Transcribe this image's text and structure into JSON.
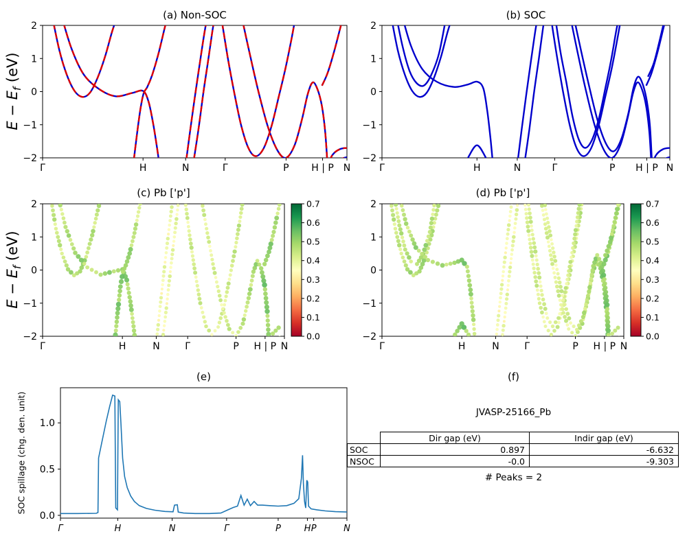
{
  "figure": {
    "background": "#ffffff"
  },
  "kpath": {
    "labels": [
      "Γ",
      "H",
      "N",
      "Γ",
      "P",
      "H | P",
      "N"
    ],
    "fractions": [
      0,
      0.33,
      0.47,
      0.6,
      0.8,
      0.92,
      1.0
    ]
  },
  "energy_ylabel": {
    "pre": "E − E",
    "sub": "f",
    "post": " (eV)"
  },
  "colormap": [
    "#a50026",
    "#d73027",
    "#f46d43",
    "#fdae61",
    "#fee08b",
    "#ffffbf",
    "#d9ef8b",
    "#a6d96a",
    "#66bd63",
    "#1a9850",
    "#006837"
  ],
  "bands": {
    "nonsoc": [
      [
        [
          0.03,
          2.35
        ],
        [
          0.055,
          1.25
        ],
        [
          0.08,
          0.5
        ],
        [
          0.105,
          0.02
        ],
        [
          0.13,
          -0.16
        ],
        [
          0.155,
          -0.04
        ],
        [
          0.18,
          0.4
        ],
        [
          0.205,
          1.05
        ],
        [
          0.228,
          1.8
        ],
        [
          0.248,
          2.35
        ]
      ],
      [
        [
          0.06,
          2.35
        ],
        [
          0.095,
          1.3
        ],
        [
          0.135,
          0.52
        ],
        [
          0.185,
          0.08
        ],
        [
          0.24,
          -0.14
        ],
        [
          0.295,
          -0.04
        ],
        [
          0.33,
          0.02
        ],
        [
          0.348,
          -0.3
        ],
        [
          0.363,
          -0.95
        ],
        [
          0.376,
          -1.7
        ],
        [
          0.386,
          -2.35
        ]
      ],
      [
        [
          0.296,
          -2.35
        ],
        [
          0.31,
          -1.3
        ],
        [
          0.322,
          -0.5
        ],
        [
          0.332,
          -0.05
        ],
        [
          0.344,
          0.14
        ],
        [
          0.36,
          0.5
        ],
        [
          0.38,
          1.12
        ],
        [
          0.4,
          1.88
        ],
        [
          0.413,
          2.35
        ]
      ],
      [
        [
          0.468,
          -2.35
        ],
        [
          0.486,
          -1.1
        ],
        [
          0.502,
          -0.05
        ],
        [
          0.518,
          0.95
        ],
        [
          0.534,
          1.9
        ],
        [
          0.544,
          2.35
        ]
      ],
      [
        [
          0.492,
          -2.35
        ],
        [
          0.512,
          -1.15
        ],
        [
          0.528,
          -0.05
        ],
        [
          0.545,
          1.0
        ],
        [
          0.56,
          1.95
        ],
        [
          0.569,
          2.35
        ]
      ],
      [
        [
          0.585,
          2.35
        ],
        [
          0.608,
          1.05
        ],
        [
          0.628,
          0.05
        ],
        [
          0.652,
          -1.0
        ],
        [
          0.676,
          -1.7
        ],
        [
          0.7,
          -1.95
        ],
        [
          0.726,
          -1.72
        ],
        [
          0.752,
          -1.05
        ],
        [
          0.776,
          -0.15
        ],
        [
          0.798,
          0.7
        ],
        [
          0.818,
          1.6
        ],
        [
          0.833,
          2.35
        ]
      ],
      [
        [
          0.652,
          2.35
        ],
        [
          0.678,
          1.25
        ],
        [
          0.708,
          0.05
        ],
        [
          0.74,
          -1.05
        ],
        [
          0.772,
          -1.78
        ],
        [
          0.8,
          -2.0
        ],
        [
          0.828,
          -1.62
        ],
        [
          0.852,
          -0.85
        ],
        [
          0.872,
          -0.05
        ],
        [
          0.888,
          0.28
        ],
        [
          0.904,
          0.05
        ],
        [
          0.918,
          -0.45
        ],
        [
          0.929,
          -1.25
        ],
        [
          0.937,
          -2.35
        ]
      ],
      [
        [
          0.918,
          0.18
        ],
        [
          0.936,
          0.55
        ],
        [
          0.956,
          1.15
        ],
        [
          0.976,
          1.85
        ],
        [
          0.99,
          2.35
        ]
      ],
      [
        [
          0.93,
          -2.35
        ],
        [
          0.952,
          -1.92
        ],
        [
          0.976,
          -1.74
        ],
        [
          1.0,
          -1.7
        ]
      ],
      [
        [
          0.956,
          -2.35
        ],
        [
          0.98,
          -2.05
        ],
        [
          1.0,
          -1.98
        ]
      ]
    ],
    "soc": [
      [
        [
          0.03,
          2.35
        ],
        [
          0.055,
          1.25
        ],
        [
          0.08,
          0.5
        ],
        [
          0.105,
          0.02
        ],
        [
          0.13,
          -0.16
        ],
        [
          0.155,
          -0.04
        ],
        [
          0.18,
          0.4
        ],
        [
          0.205,
          1.05
        ],
        [
          0.228,
          1.8
        ],
        [
          0.248,
          2.35
        ]
      ],
      [
        [
          0.048,
          2.35
        ],
        [
          0.072,
          1.35
        ],
        [
          0.096,
          0.62
        ],
        [
          0.12,
          0.26
        ],
        [
          0.145,
          0.18
        ],
        [
          0.17,
          0.48
        ],
        [
          0.198,
          1.15
        ],
        [
          0.225,
          2.35
        ]
      ],
      [
        [
          0.068,
          2.35
        ],
        [
          0.1,
          1.4
        ],
        [
          0.14,
          0.68
        ],
        [
          0.19,
          0.3
        ],
        [
          0.25,
          0.14
        ],
        [
          0.3,
          0.22
        ],
        [
          0.33,
          0.3
        ],
        [
          0.352,
          0.1
        ],
        [
          0.366,
          -0.6
        ],
        [
          0.378,
          -1.5
        ],
        [
          0.387,
          -2.35
        ]
      ],
      [
        [
          0.282,
          -2.35
        ],
        [
          0.302,
          -1.95
        ],
        [
          0.33,
          -1.62
        ],
        [
          0.358,
          -1.95
        ],
        [
          0.378,
          -2.35
        ]
      ],
      [
        [
          0.468,
          -2.35
        ],
        [
          0.486,
          -1.1
        ],
        [
          0.502,
          -0.05
        ],
        [
          0.518,
          0.95
        ],
        [
          0.534,
          1.9
        ],
        [
          0.544,
          2.35
        ]
      ],
      [
        [
          0.492,
          -2.35
        ],
        [
          0.512,
          -1.15
        ],
        [
          0.528,
          -0.05
        ],
        [
          0.545,
          1.0
        ],
        [
          0.56,
          1.95
        ],
        [
          0.569,
          2.35
        ]
      ],
      [
        [
          0.585,
          2.35
        ],
        [
          0.608,
          1.05
        ],
        [
          0.628,
          0.05
        ],
        [
          0.652,
          -1.0
        ],
        [
          0.676,
          -1.7
        ],
        [
          0.7,
          -1.95
        ],
        [
          0.726,
          -1.72
        ],
        [
          0.752,
          -1.05
        ],
        [
          0.776,
          -0.15
        ],
        [
          0.798,
          0.7
        ],
        [
          0.818,
          1.6
        ],
        [
          0.833,
          2.35
        ]
      ],
      [
        [
          0.6,
          2.35
        ],
        [
          0.62,
          1.2
        ],
        [
          0.64,
          0.3
        ],
        [
          0.662,
          -0.75
        ],
        [
          0.684,
          -1.45
        ],
        [
          0.706,
          -1.7
        ],
        [
          0.73,
          -1.45
        ],
        [
          0.754,
          -0.8
        ],
        [
          0.776,
          0.1
        ],
        [
          0.796,
          0.95
        ],
        [
          0.814,
          1.85
        ],
        [
          0.826,
          2.35
        ]
      ],
      [
        [
          0.652,
          2.35
        ],
        [
          0.678,
          1.25
        ],
        [
          0.708,
          0.05
        ],
        [
          0.74,
          -1.05
        ],
        [
          0.772,
          -1.78
        ],
        [
          0.8,
          -2.0
        ],
        [
          0.828,
          -1.62
        ],
        [
          0.852,
          -0.85
        ],
        [
          0.872,
          -0.05
        ],
        [
          0.888,
          0.28
        ],
        [
          0.904,
          0.05
        ],
        [
          0.918,
          -0.45
        ],
        [
          0.929,
          -1.25
        ],
        [
          0.937,
          -2.35
        ]
      ],
      [
        [
          0.664,
          2.35
        ],
        [
          0.69,
          1.3
        ],
        [
          0.72,
          0.15
        ],
        [
          0.75,
          -0.9
        ],
        [
          0.78,
          -1.6
        ],
        [
          0.806,
          -1.8
        ],
        [
          0.832,
          -1.42
        ],
        [
          0.856,
          -0.65
        ],
        [
          0.874,
          0.12
        ],
        [
          0.89,
          0.45
        ],
        [
          0.906,
          0.22
        ],
        [
          0.92,
          -0.28
        ],
        [
          0.931,
          -1.05
        ],
        [
          0.939,
          -2.35
        ]
      ],
      [
        [
          0.918,
          0.18
        ],
        [
          0.936,
          0.55
        ],
        [
          0.956,
          1.15
        ],
        [
          0.976,
          1.85
        ],
        [
          0.99,
          2.35
        ]
      ],
      [
        [
          0.924,
          0.45
        ],
        [
          0.944,
          0.85
        ],
        [
          0.962,
          1.45
        ],
        [
          0.98,
          2.1
        ],
        [
          0.989,
          2.35
        ]
      ],
      [
        [
          0.93,
          -2.35
        ],
        [
          0.952,
          -1.92
        ],
        [
          0.976,
          -1.74
        ],
        [
          1.0,
          -1.7
        ]
      ],
      [
        [
          0.956,
          -2.35
        ],
        [
          0.98,
          -2.05
        ],
        [
          1.0,
          -1.98
        ]
      ]
    ]
  },
  "chart_data": [
    {
      "id": "a",
      "type": "line",
      "title": "(a) Non-SOC",
      "ylabel": "E − E_f (eV)",
      "ylim": [
        -2,
        2
      ],
      "yticks": [
        -2,
        -1,
        0,
        1,
        2
      ],
      "bands_ref": "nonsoc",
      "style": {
        "line_color": "#0000cc",
        "overlay_dash_color": "#dd0000",
        "dash_pattern": "9 5"
      }
    },
    {
      "id": "b",
      "type": "line",
      "title": "(b) SOC",
      "ylim": [
        -2,
        2
      ],
      "yticks": [
        -2,
        -1,
        0,
        1,
        2
      ],
      "bands_ref": "soc",
      "style": {
        "line_color": "#0000cc"
      }
    },
    {
      "id": "c",
      "type": "scatter",
      "title": "(c) Pb ['p']",
      "ylabel": "E − E_f (eV)",
      "ylim": [
        -2,
        2
      ],
      "yticks": [
        -2,
        -1,
        0,
        1,
        2
      ],
      "bands_ref": "nonsoc",
      "colorbar": {
        "min": 0,
        "max": 0.7,
        "ticks": [
          0,
          0.1,
          0.2,
          0.3,
          0.4,
          0.5,
          0.6,
          0.7
        ]
      },
      "value_stops": [
        [
          0,
          0.42
        ],
        [
          0.1,
          0.45
        ],
        [
          0.15,
          0.5
        ],
        [
          0.22,
          0.44
        ],
        [
          0.3,
          0.5
        ],
        [
          0.34,
          0.52
        ],
        [
          0.4,
          0.42
        ],
        [
          0.47,
          0.36
        ],
        [
          0.55,
          0.38
        ],
        [
          0.62,
          0.42
        ],
        [
          0.7,
          0.4
        ],
        [
          0.78,
          0.42
        ],
        [
          0.86,
          0.46
        ],
        [
          0.92,
          0.52
        ],
        [
          1,
          0.44
        ]
      ]
    },
    {
      "id": "d",
      "type": "scatter",
      "title": "(d) Pb ['p']",
      "ylim": [
        -2,
        2
      ],
      "yticks": [
        -2,
        -1,
        0,
        1,
        2
      ],
      "bands_ref": "soc",
      "colorbar": {
        "min": 0,
        "max": 0.7,
        "ticks": [
          0,
          0.1,
          0.2,
          0.3,
          0.4,
          0.5,
          0.6,
          0.7
        ]
      },
      "value_stops": [
        [
          0,
          0.42
        ],
        [
          0.1,
          0.45
        ],
        [
          0.15,
          0.5
        ],
        [
          0.22,
          0.44
        ],
        [
          0.3,
          0.5
        ],
        [
          0.34,
          0.52
        ],
        [
          0.4,
          0.42
        ],
        [
          0.47,
          0.36
        ],
        [
          0.55,
          0.38
        ],
        [
          0.62,
          0.42
        ],
        [
          0.7,
          0.4
        ],
        [
          0.78,
          0.42
        ],
        [
          0.86,
          0.46
        ],
        [
          0.92,
          0.52
        ],
        [
          1,
          0.44
        ]
      ]
    },
    {
      "id": "e",
      "type": "line",
      "title": "(e)",
      "ylabel": "SOC spillage (chg. den. unit)",
      "ylim": [
        -0.03,
        1.38
      ],
      "yticks": [
        0,
        0.5,
        1
      ],
      "line_color": "#1f77b4",
      "x_ticks": {
        "labels": [
          "Γ",
          "H",
          "N",
          "Γ",
          "P",
          "H",
          "P",
          "N"
        ],
        "fractions": [
          0,
          0.2,
          0.39,
          0.58,
          0.76,
          0.862,
          0.884,
          1
        ]
      },
      "points": [
        [
          0.0,
          0.02
        ],
        [
          0.06,
          0.02
        ],
        [
          0.125,
          0.022
        ],
        [
          0.131,
          0.03
        ],
        [
          0.133,
          0.62
        ],
        [
          0.145,
          0.8
        ],
        [
          0.16,
          1.02
        ],
        [
          0.172,
          1.18
        ],
        [
          0.182,
          1.3
        ],
        [
          0.19,
          1.29
        ],
        [
          0.1915,
          0.6
        ],
        [
          0.193,
          0.08
        ],
        [
          0.199,
          0.06
        ],
        [
          0.2005,
          0.7
        ],
        [
          0.202,
          1.25
        ],
        [
          0.207,
          1.23
        ],
        [
          0.211,
          1.0
        ],
        [
          0.217,
          0.62
        ],
        [
          0.224,
          0.42
        ],
        [
          0.233,
          0.3
        ],
        [
          0.245,
          0.21
        ],
        [
          0.258,
          0.15
        ],
        [
          0.275,
          0.105
        ],
        [
          0.3,
          0.075
        ],
        [
          0.33,
          0.055
        ],
        [
          0.365,
          0.042
        ],
        [
          0.393,
          0.038
        ],
        [
          0.398,
          0.11
        ],
        [
          0.408,
          0.115
        ],
        [
          0.411,
          0.035
        ],
        [
          0.43,
          0.025
        ],
        [
          0.47,
          0.02
        ],
        [
          0.52,
          0.02
        ],
        [
          0.56,
          0.025
        ],
        [
          0.585,
          0.06
        ],
        [
          0.603,
          0.085
        ],
        [
          0.618,
          0.1
        ],
        [
          0.63,
          0.215
        ],
        [
          0.641,
          0.11
        ],
        [
          0.652,
          0.175
        ],
        [
          0.663,
          0.105
        ],
        [
          0.676,
          0.15
        ],
        [
          0.688,
          0.11
        ],
        [
          0.705,
          0.11
        ],
        [
          0.73,
          0.105
        ],
        [
          0.76,
          0.1
        ],
        [
          0.79,
          0.105
        ],
        [
          0.815,
          0.13
        ],
        [
          0.832,
          0.18
        ],
        [
          0.841,
          0.4
        ],
        [
          0.845,
          0.65
        ],
        [
          0.848,
          0.35
        ],
        [
          0.852,
          0.15
        ],
        [
          0.856,
          0.08
        ],
        [
          0.86,
          0.38
        ],
        [
          0.863,
          0.36
        ],
        [
          0.866,
          0.1
        ],
        [
          0.875,
          0.07
        ],
        [
          0.895,
          0.06
        ],
        [
          0.925,
          0.048
        ],
        [
          0.96,
          0.04
        ],
        [
          1.0,
          0.036
        ]
      ]
    },
    {
      "id": "f",
      "type": "table",
      "title": "(f)",
      "heading": "JVASP-25166_Pb",
      "col_headers": [
        "Dir gap (eV)",
        "Indir gap (eV)"
      ],
      "row_headers": [
        "SOC",
        "NSOC"
      ],
      "values": [
        [
          "0.897",
          "-6.632"
        ],
        [
          "-0.0",
          "-9.303"
        ]
      ],
      "note": "# Peaks = 2"
    }
  ]
}
